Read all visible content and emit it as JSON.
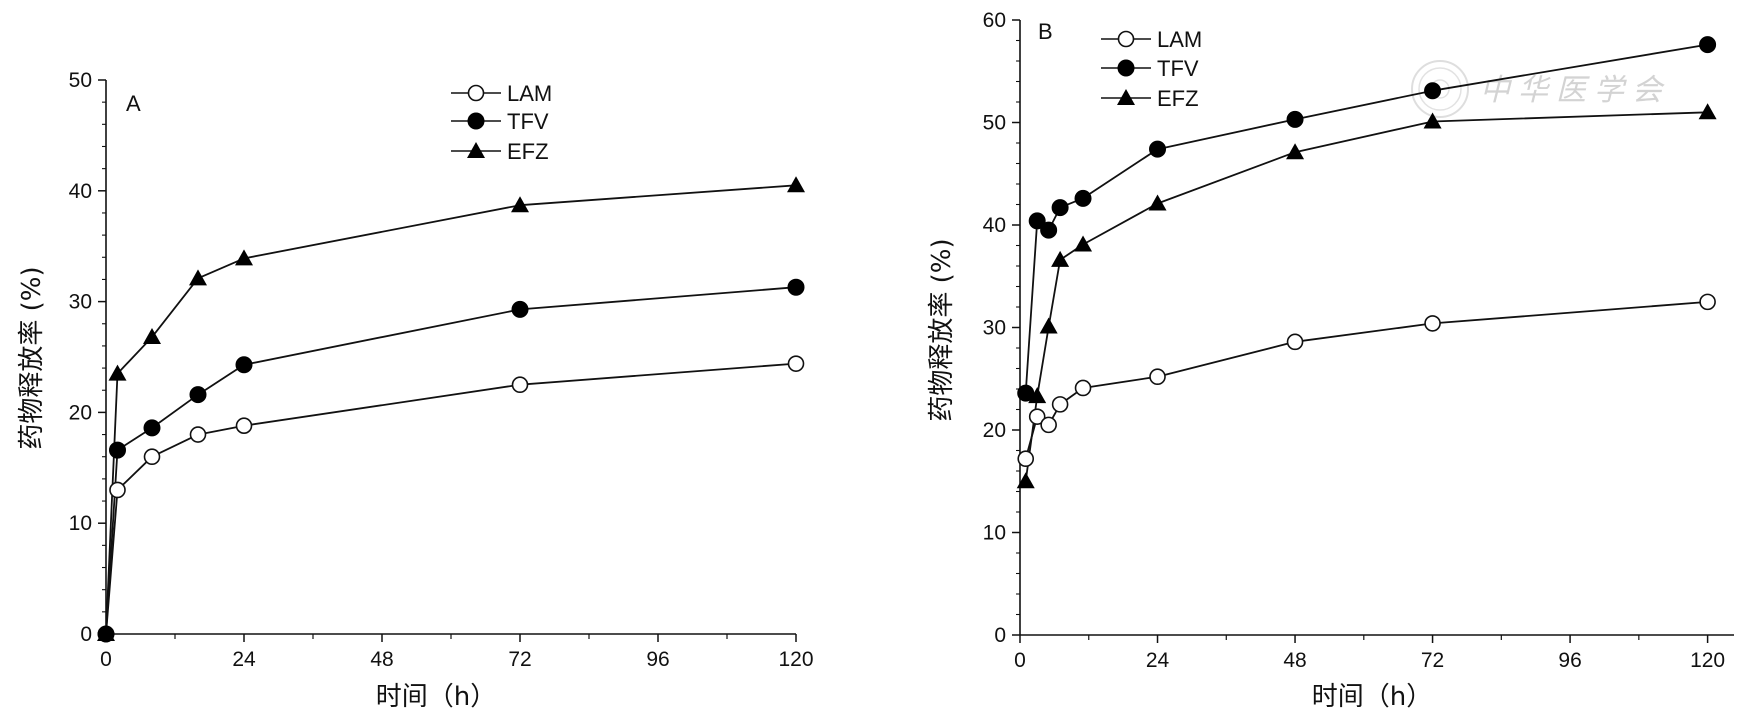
{
  "watermark": {
    "text": "中华医学会"
  },
  "chart_data": [
    {
      "panel": "A",
      "type": "line",
      "title": "",
      "xlabel": "时间（h）",
      "ylabel": "药物释放率 (%)",
      "xlim": [
        0,
        124
      ],
      "ylim": [
        0,
        50
      ],
      "xticks": [
        0,
        24,
        48,
        72,
        96,
        120
      ],
      "xticklabels": [
        "0",
        "24",
        "48",
        "72",
        "96",
        "120"
      ],
      "xminor": [
        12,
        36,
        60,
        84,
        108
      ],
      "yticks": [
        0,
        10,
        20,
        30,
        40,
        50
      ],
      "yticklabels": [
        "0",
        "10",
        "20",
        "30",
        "40",
        "50"
      ],
      "yminor": [
        2,
        4,
        6,
        8,
        12,
        14,
        16,
        18,
        22,
        24,
        26,
        28,
        32,
        34,
        36,
        38,
        42,
        44,
        46,
        48
      ],
      "legend_position": "top-center",
      "series": [
        {
          "name": "LAM",
          "marker": "circle-open",
          "x": [
            0,
            2,
            8,
            16,
            24,
            72,
            120
          ],
          "values": [
            0,
            13.0,
            16.0,
            18.0,
            18.8,
            22.5,
            24.4
          ]
        },
        {
          "name": "TFV",
          "marker": "circle-filled",
          "x": [
            0,
            2,
            8,
            16,
            24,
            72,
            120
          ],
          "values": [
            0,
            16.6,
            18.6,
            21.6,
            24.3,
            29.3,
            31.3
          ]
        },
        {
          "name": "EFZ",
          "marker": "triangle-filled",
          "x": [
            0,
            2,
            8,
            16,
            24,
            72,
            120
          ],
          "values": [
            0,
            23.5,
            26.8,
            32.1,
            33.9,
            38.7,
            40.5
          ]
        }
      ]
    },
    {
      "panel": "B",
      "type": "line",
      "title": "",
      "xlabel": "时间（h）",
      "ylabel": "药物释放率 (%)",
      "xlim": [
        0,
        124
      ],
      "ylim": [
        0,
        60
      ],
      "xticks": [
        0,
        24,
        48,
        72,
        96,
        120
      ],
      "xticklabels": [
        "0",
        "24",
        "48",
        "72",
        "96",
        "120"
      ],
      "xminor": [
        12,
        36,
        60,
        84,
        108
      ],
      "yticks": [
        0,
        10,
        20,
        30,
        40,
        50,
        60
      ],
      "yticklabels": [
        "0",
        "10",
        "20",
        "30",
        "40",
        "50",
        "60"
      ],
      "yminor": [
        2,
        4,
        6,
        8,
        12,
        14,
        16,
        18,
        22,
        24,
        26,
        28,
        32,
        34,
        36,
        38,
        42,
        44,
        46,
        48,
        52,
        54,
        56,
        58
      ],
      "legend_position": "top-left",
      "series": [
        {
          "name": "LAM",
          "marker": "circle-open",
          "x": [
            1,
            3,
            5,
            7,
            11,
            24,
            48,
            72,
            120
          ],
          "values": [
            17.2,
            21.3,
            20.5,
            22.5,
            24.1,
            25.2,
            28.6,
            30.4,
            32.5
          ]
        },
        {
          "name": "TFV",
          "marker": "circle-filled",
          "x": [
            1,
            3,
            5,
            7,
            11,
            24,
            48,
            72,
            120
          ],
          "values": [
            23.6,
            40.4,
            39.5,
            41.7,
            42.6,
            47.4,
            50.3,
            53.1,
            57.6
          ]
        },
        {
          "name": "EFZ",
          "marker": "triangle-filled",
          "x": [
            1,
            3,
            5,
            7,
            11,
            24,
            48,
            72,
            120
          ],
          "values": [
            15.0,
            23.3,
            30.1,
            36.6,
            38.1,
            42.1,
            47.1,
            50.1,
            51.0
          ]
        }
      ]
    }
  ]
}
